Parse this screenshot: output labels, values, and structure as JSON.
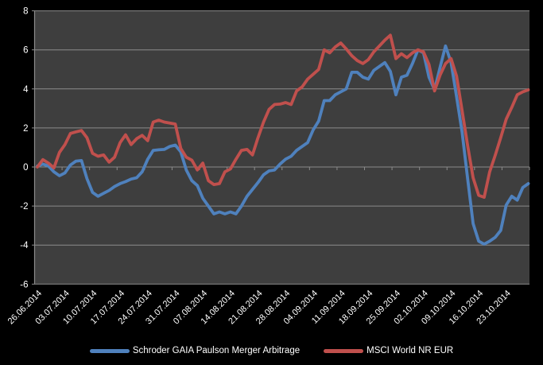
{
  "chart_data": {
    "type": "line",
    "title": "",
    "xlabel": "",
    "ylabel": "",
    "ylim": [
      -6,
      8
    ],
    "y_ticks": [
      8,
      6,
      4,
      2,
      0,
      -2,
      -4,
      -6
    ],
    "grid": true,
    "legend_position": "bottom",
    "x_label_interval_points": 5,
    "x_labels": [
      "26.06.2014",
      "03.07.2014",
      "10.07.2014",
      "17.07.2014",
      "24.07.2014",
      "31.07.2014",
      "07.08.2014",
      "14.08.2014",
      "21.08.2014",
      "28.08.2014",
      "04.09.2014",
      "11.09.2014",
      "18.09.2014",
      "25.09.2014",
      "02.10.2014",
      "09.10.2014",
      "16.10.2014",
      "23.10.2014"
    ],
    "series": [
      {
        "name": "Schroder GAIA Paulson Merger Arbitrage",
        "color": "#4F81BD",
        "values": [
          0.05,
          0.15,
          0.05,
          -0.25,
          -0.45,
          -0.3,
          0.1,
          0.3,
          0.33,
          -0.6,
          -1.3,
          -1.5,
          -1.35,
          -1.2,
          -1.0,
          -0.85,
          -0.75,
          -0.62,
          -0.55,
          -0.25,
          0.4,
          0.85,
          0.88,
          0.9,
          1.05,
          1.12,
          0.78,
          -0.15,
          -0.7,
          -0.95,
          -1.6,
          -2.0,
          -2.4,
          -2.3,
          -2.4,
          -2.3,
          -2.4,
          -2.0,
          -1.5,
          -1.15,
          -0.8,
          -0.4,
          -0.2,
          -0.15,
          0.15,
          0.4,
          0.55,
          0.85,
          1.05,
          1.25,
          1.9,
          2.35,
          3.4,
          3.4,
          3.7,
          3.85,
          4.0,
          4.85,
          4.85,
          4.6,
          4.5,
          4.95,
          5.15,
          5.35,
          4.9,
          3.7,
          4.6,
          4.7,
          5.3,
          6.0,
          5.85,
          4.6,
          3.95,
          5.1,
          6.2,
          5.35,
          3.6,
          1.8,
          -0.6,
          -2.9,
          -3.8,
          -3.95,
          -3.8,
          -3.6,
          -3.25,
          -1.95,
          -1.5,
          -1.7,
          -1.05,
          -0.85
        ]
      },
      {
        "name": "MSCI World NR EUR",
        "color": "#C0504D",
        "values": [
          0.0,
          0.38,
          0.2,
          -0.05,
          0.75,
          1.15,
          1.72,
          1.8,
          1.87,
          1.5,
          0.7,
          0.55,
          0.62,
          0.25,
          0.5,
          1.25,
          1.65,
          1.15,
          1.45,
          1.62,
          1.35,
          2.3,
          2.4,
          2.3,
          2.25,
          2.2,
          0.95,
          0.5,
          0.35,
          -0.15,
          0.2,
          -0.7,
          -0.9,
          -0.85,
          -0.25,
          -0.1,
          0.4,
          0.85,
          0.9,
          0.62,
          1.5,
          2.3,
          2.95,
          3.2,
          3.22,
          3.3,
          3.2,
          3.9,
          4.1,
          4.5,
          4.75,
          5.0,
          6.0,
          5.85,
          6.15,
          6.35,
          6.05,
          5.7,
          5.45,
          5.3,
          5.5,
          5.9,
          6.2,
          6.5,
          6.75,
          5.55,
          5.8,
          5.6,
          5.85,
          6.0,
          5.9,
          5.25,
          3.9,
          4.7,
          5.3,
          5.55,
          4.65,
          2.9,
          1.1,
          -0.55,
          -1.45,
          -1.55,
          -0.25,
          0.6,
          1.5,
          2.45,
          3.05,
          3.7,
          3.85,
          3.95
        ]
      }
    ],
    "colors": {
      "outer_background": "#000000",
      "plot_background": "#3E3E3E",
      "gridline": "#8B8B8B",
      "axis": "#8B8B8B",
      "text": "#FFFFFF"
    }
  }
}
